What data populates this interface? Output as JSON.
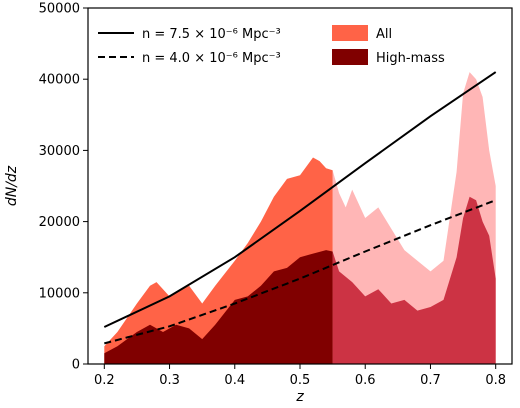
{
  "chart_data": {
    "type": "area",
    "xlabel": "z",
    "ylabel": "dN/dz",
    "xlim": [
      0.175,
      0.825
    ],
    "ylim": [
      0,
      50000
    ],
    "xticks": [
      "0.2",
      "0.3",
      "0.4",
      "0.5",
      "0.6",
      "0.7",
      "0.8"
    ],
    "yticks": [
      "0",
      "10000",
      "20000",
      "30000",
      "40000",
      "50000"
    ],
    "split_z": 0.55,
    "grid": false,
    "legend_placement": "top",
    "areas": [
      {
        "name": "All",
        "color": "#ff6347",
        "faded_color": "#ffb6b6",
        "points": [
          [
            0.2,
            2500
          ],
          [
            0.22,
            4500
          ],
          [
            0.25,
            8500
          ],
          [
            0.27,
            11000
          ],
          [
            0.28,
            11500
          ],
          [
            0.3,
            9500
          ],
          [
            0.32,
            10500
          ],
          [
            0.33,
            11000
          ],
          [
            0.35,
            8500
          ],
          [
            0.37,
            11000
          ],
          [
            0.4,
            14500
          ],
          [
            0.42,
            17000
          ],
          [
            0.44,
            20000
          ],
          [
            0.46,
            23500
          ],
          [
            0.48,
            26000
          ],
          [
            0.5,
            26500
          ],
          [
            0.52,
            29000
          ],
          [
            0.53,
            28500
          ],
          [
            0.54,
            27500
          ],
          [
            0.55,
            27200
          ],
          [
            0.56,
            24000
          ],
          [
            0.57,
            22000
          ],
          [
            0.58,
            24500
          ],
          [
            0.6,
            20500
          ],
          [
            0.62,
            22000
          ],
          [
            0.64,
            19000
          ],
          [
            0.66,
            16000
          ],
          [
            0.68,
            14500
          ],
          [
            0.7,
            13000
          ],
          [
            0.72,
            14500
          ],
          [
            0.74,
            27000
          ],
          [
            0.75,
            38000
          ],
          [
            0.76,
            41000
          ],
          [
            0.77,
            40000
          ],
          [
            0.78,
            37500
          ],
          [
            0.79,
            30000
          ],
          [
            0.8,
            25000
          ]
        ]
      },
      {
        "name": "High-mass",
        "color": "#800000",
        "faded_color": "#cc3344",
        "points": [
          [
            0.2,
            1500
          ],
          [
            0.22,
            2500
          ],
          [
            0.25,
            4500
          ],
          [
            0.27,
            5500
          ],
          [
            0.29,
            4500
          ],
          [
            0.31,
            5500
          ],
          [
            0.33,
            5000
          ],
          [
            0.35,
            3500
          ],
          [
            0.37,
            5500
          ],
          [
            0.4,
            9000
          ],
          [
            0.42,
            9500
          ],
          [
            0.44,
            11000
          ],
          [
            0.46,
            13000
          ],
          [
            0.48,
            13500
          ],
          [
            0.5,
            15000
          ],
          [
            0.52,
            15500
          ],
          [
            0.54,
            16000
          ],
          [
            0.55,
            15800
          ],
          [
            0.56,
            13000
          ],
          [
            0.58,
            11500
          ],
          [
            0.6,
            9500
          ],
          [
            0.62,
            10500
          ],
          [
            0.64,
            8500
          ],
          [
            0.66,
            9000
          ],
          [
            0.68,
            7500
          ],
          [
            0.7,
            8000
          ],
          [
            0.72,
            9000
          ],
          [
            0.74,
            15000
          ],
          [
            0.75,
            20500
          ],
          [
            0.76,
            23500
          ],
          [
            0.77,
            23000
          ],
          [
            0.78,
            20000
          ],
          [
            0.79,
            18000
          ],
          [
            0.8,
            12000
          ]
        ]
      }
    ],
    "lines": [
      {
        "label": "n = 7.5 × 10⁻⁶ Mpc⁻³",
        "style": "solid",
        "color": "#000000",
        "points": [
          [
            0.2,
            5200
          ],
          [
            0.3,
            9500
          ],
          [
            0.4,
            15000
          ],
          [
            0.5,
            21500
          ],
          [
            0.6,
            28200
          ],
          [
            0.7,
            34800
          ],
          [
            0.8,
            41000
          ]
        ]
      },
      {
        "label": "n = 4.0 × 10⁻⁶ Mpc⁻³",
        "style": "dashed",
        "color": "#000000",
        "points": [
          [
            0.2,
            2900
          ],
          [
            0.3,
            5300
          ],
          [
            0.4,
            8500
          ],
          [
            0.5,
            12000
          ],
          [
            0.6,
            15800
          ],
          [
            0.7,
            19500
          ],
          [
            0.8,
            23000
          ]
        ]
      }
    ]
  }
}
